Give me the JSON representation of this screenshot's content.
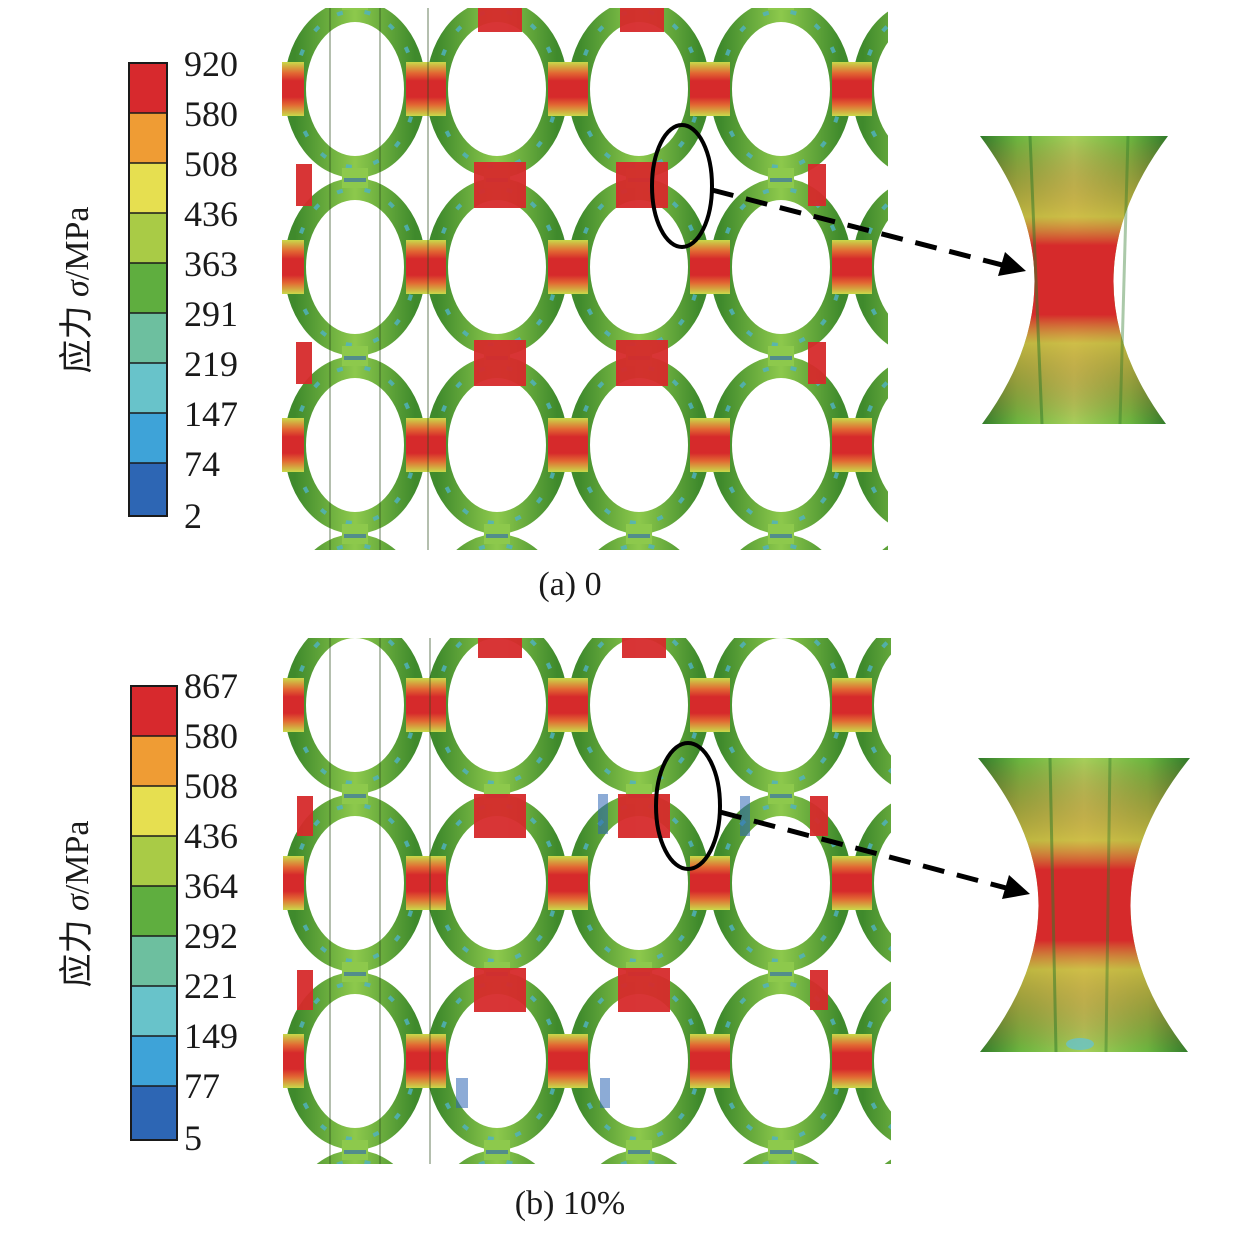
{
  "panels": [
    {
      "id": "a",
      "caption": "(a) 0",
      "legend": {
        "title_prefix": "应力 ",
        "title_symbol": "σ",
        "title_suffix": "/MPa",
        "ticks": [
          "920",
          "580",
          "508",
          "436",
          "363",
          "291",
          "219",
          "147",
          "74",
          "2"
        ],
        "colors": [
          "#d7292d",
          "#ef9c34",
          "#e6df50",
          "#a9cb46",
          "#5fae3f",
          "#6dbf9f",
          "#68c3ca",
          "#3ea3d8",
          "#2d66b4"
        ]
      }
    },
    {
      "id": "b",
      "caption": "(b) 10%",
      "legend": {
        "title_prefix": "应力 ",
        "title_symbol": "σ",
        "title_suffix": "/MPa",
        "ticks": [
          "867",
          "580",
          "508",
          "436",
          "364",
          "292",
          "221",
          "149",
          "77",
          "5"
        ],
        "colors": [
          "#d7292d",
          "#ef9c34",
          "#e6df50",
          "#a9cb46",
          "#5fae3f",
          "#6dbf9f",
          "#68c3ca",
          "#3ea3d8",
          "#2d66b4"
        ]
      }
    }
  ]
}
